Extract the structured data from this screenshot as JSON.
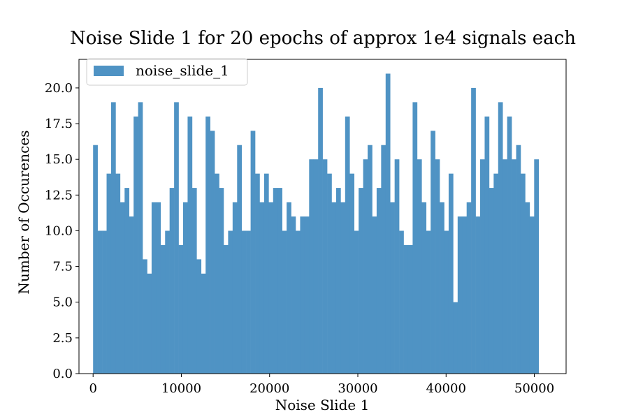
{
  "chart_data": {
    "type": "bar",
    "title": "Noise Slide 1 for 20 epochs of approx 1e4 signals each",
    "xlabel": "Noise Slide 1",
    "ylabel": "Number of Occurences",
    "xlim": [
      -1600,
      53600
    ],
    "ylim": [
      0,
      22
    ],
    "xticks": [
      0,
      10000,
      20000,
      30000,
      40000,
      50000
    ],
    "yticks": [
      0.0,
      2.5,
      5.0,
      7.5,
      10.0,
      12.5,
      15.0,
      17.5,
      20.0
    ],
    "xtick_labels": [
      "0",
      "10000",
      "20000",
      "30000",
      "40000",
      "50000"
    ],
    "ytick_labels": [
      "0.0",
      "2.5",
      "5.0",
      "7.5",
      "10.0",
      "12.5",
      "15.0",
      "17.5",
      "20.0"
    ],
    "bin_start": 0,
    "bin_width": 510,
    "series": [
      {
        "name": "noise_slide_1",
        "color": "#4f93c4",
        "values": [
          16,
          10,
          10,
          14,
          19,
          14,
          12,
          13,
          11,
          18,
          19,
          8,
          7,
          12,
          12,
          9,
          10,
          13,
          19,
          9,
          12,
          18,
          13,
          8,
          7,
          18,
          17,
          14,
          13,
          9,
          10,
          12,
          16,
          10,
          10,
          17,
          14,
          12,
          14,
          12,
          13,
          13,
          10,
          12,
          11,
          10,
          11,
          11,
          15,
          15,
          20,
          15,
          14,
          12,
          13,
          12,
          18,
          14,
          10,
          13,
          15,
          16,
          11,
          13,
          16,
          21,
          12,
          15,
          10,
          9,
          9,
          19,
          15,
          12,
          10,
          17,
          15,
          12,
          10,
          14,
          5,
          11,
          11,
          12,
          20,
          11,
          15,
          18,
          13,
          14,
          19,
          15,
          18,
          15,
          16,
          14,
          12,
          11,
          15
        ]
      }
    ],
    "legend_position": "top-left",
    "grid": false
  }
}
